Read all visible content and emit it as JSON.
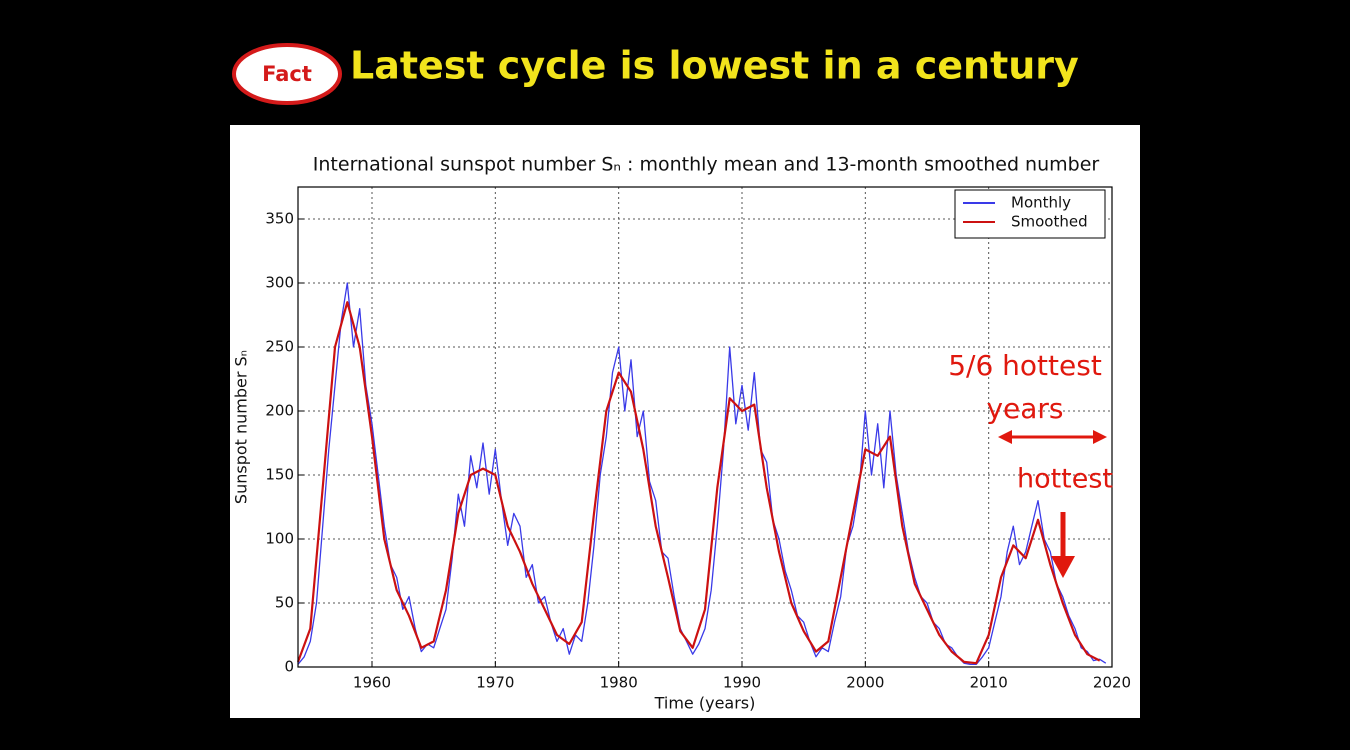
{
  "slide": {
    "badge": "Fact",
    "title": "Latest cycle is lowest in a century"
  },
  "chart_data": {
    "type": "line",
    "title": "International sunspot number Sₙ : monthly mean and 13-month smoothed number",
    "x_label": "Time (years)",
    "y_label": "Sunspot number Sₙ",
    "xlim": [
      1954,
      2020
    ],
    "ylim": [
      0,
      375
    ],
    "xticks": [
      1960,
      1970,
      1980,
      1990,
      2000,
      2010,
      2020
    ],
    "yticks": [
      0,
      50,
      100,
      150,
      200,
      250,
      300,
      350
    ],
    "grid": true,
    "legend": "upper right",
    "series": [
      {
        "name": "Monthly",
        "color": "#3a3ae8",
        "x": [
          1954,
          1954.5,
          1955,
          1955.5,
          1956,
          1956.5,
          1957,
          1957.5,
          1958,
          1958.5,
          1959,
          1959.5,
          1960,
          1960.5,
          1961,
          1961.5,
          1962,
          1962.5,
          1963,
          1963.5,
          1964,
          1964.5,
          1965,
          1965.5,
          1966,
          1966.5,
          1967,
          1967.5,
          1968,
          1968.5,
          1969,
          1969.5,
          1970,
          1970.5,
          1971,
          1971.5,
          1972,
          1972.5,
          1973,
          1973.5,
          1974,
          1974.5,
          1975,
          1975.5,
          1976,
          1976.5,
          1977,
          1977.5,
          1978,
          1978.5,
          1979,
          1979.5,
          1980,
          1980.5,
          1981,
          1981.5,
          1982,
          1982.5,
          1983,
          1983.5,
          1984,
          1984.5,
          1985,
          1985.5,
          1986,
          1986.5,
          1987,
          1987.5,
          1988,
          1988.5,
          1989,
          1989.5,
          1990,
          1990.5,
          1991,
          1991.5,
          1992,
          1992.5,
          1993,
          1993.5,
          1994,
          1994.5,
          1995,
          1995.5,
          1996,
          1996.5,
          1997,
          1997.5,
          1998,
          1998.5,
          1999,
          1999.5,
          2000,
          2000.5,
          2001,
          2001.5,
          2002,
          2002.5,
          2003,
          2003.5,
          2004,
          2004.5,
          2005,
          2005.5,
          2006,
          2006.5,
          2007,
          2007.5,
          2008,
          2008.5,
          2009,
          2009.5,
          2010,
          2010.5,
          2011,
          2011.5,
          2012,
          2012.5,
          2013,
          2013.5,
          2014,
          2014.5,
          2015,
          2015.5,
          2016,
          2016.5,
          2017,
          2017.5,
          2018,
          2018.5,
          2019,
          2019.5
        ],
        "values": [
          2,
          8,
          20,
          50,
          110,
          170,
          220,
          270,
          300,
          250,
          280,
          220,
          190,
          150,
          110,
          80,
          70,
          45,
          55,
          30,
          12,
          18,
          15,
          30,
          45,
          85,
          135,
          110,
          165,
          140,
          175,
          135,
          170,
          130,
          95,
          120,
          110,
          70,
          80,
          50,
          55,
          35,
          20,
          30,
          10,
          25,
          20,
          50,
          95,
          150,
          180,
          230,
          250,
          200,
          240,
          180,
          200,
          145,
          130,
          90,
          85,
          55,
          30,
          20,
          10,
          18,
          30,
          60,
          110,
          170,
          250,
          190,
          220,
          185,
          230,
          170,
          160,
          115,
          100,
          75,
          60,
          40,
          35,
          20,
          8,
          15,
          12,
          35,
          55,
          95,
          110,
          140,
          200,
          150,
          190,
          140,
          200,
          150,
          120,
          90,
          70,
          55,
          50,
          35,
          30,
          18,
          15,
          8,
          3,
          2,
          2,
          8,
          15,
          35,
          55,
          90,
          110,
          80,
          90,
          110,
          130,
          100,
          90,
          65,
          55,
          40,
          30,
          15,
          12,
          5,
          6,
          3
        ]
      },
      {
        "name": "Smoothed",
        "color": "#cc1111",
        "x": [
          1954,
          1955,
          1956,
          1957,
          1958,
          1959,
          1960,
          1961,
          1962,
          1963,
          1964,
          1965,
          1966,
          1967,
          1968,
          1969,
          1970,
          1971,
          1972,
          1973,
          1974,
          1975,
          1976,
          1977,
          1978,
          1979,
          1980,
          1981,
          1982,
          1983,
          1984,
          1985,
          1986,
          1987,
          1988,
          1989,
          1990,
          1991,
          1992,
          1993,
          1994,
          1995,
          1996,
          1997,
          1998,
          1999,
          2000,
          2001,
          2002,
          2003,
          2004,
          2005,
          2006,
          2007,
          2008,
          2009,
          2010,
          2011,
          2012,
          2013,
          2014,
          2015,
          2016,
          2017,
          2018,
          2019
        ],
        "values": [
          4,
          30,
          140,
          250,
          285,
          250,
          180,
          100,
          60,
          40,
          15,
          20,
          60,
          120,
          150,
          155,
          150,
          110,
          90,
          65,
          45,
          25,
          18,
          35,
          120,
          200,
          230,
          215,
          170,
          110,
          70,
          28,
          15,
          45,
          140,
          210,
          200,
          205,
          140,
          90,
          50,
          28,
          12,
          20,
          70,
          120,
          170,
          165,
          180,
          110,
          65,
          45,
          25,
          12,
          4,
          3,
          25,
          70,
          95,
          85,
          115,
          80,
          50,
          25,
          10,
          5
        ]
      }
    ],
    "annotations": [
      "5/6 hottest",
      "years",
      "hottest"
    ]
  }
}
